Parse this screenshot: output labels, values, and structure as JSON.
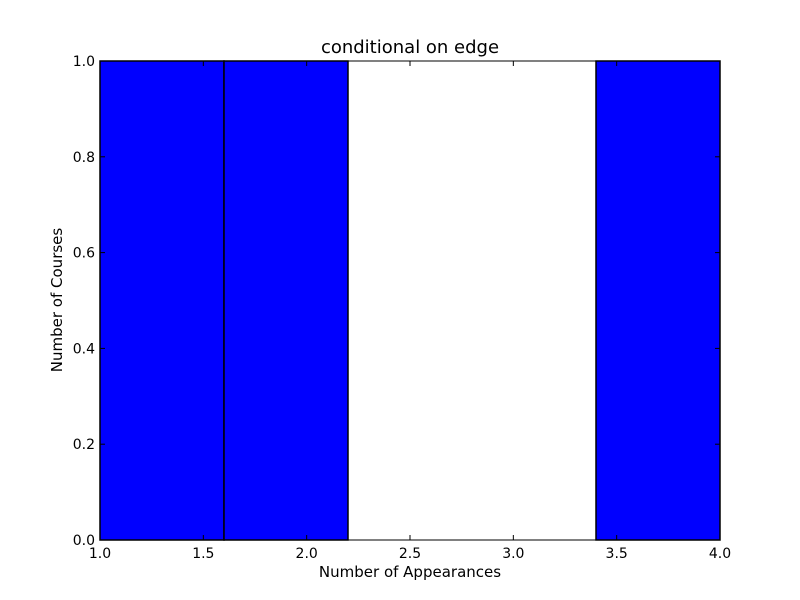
{
  "chart_data": {
    "type": "bar",
    "title": "conditional on edge",
    "xlabel": "Number of Appearances",
    "ylabel": "Number of Courses",
    "xlim": [
      1.0,
      4.0
    ],
    "ylim": [
      0.0,
      1.0
    ],
    "grid": false,
    "bar_color": "#0000ff",
    "edge_color": "#000000",
    "bins": [
      {
        "x0": 1.0,
        "x1": 1.6,
        "value": 1
      },
      {
        "x0": 1.6,
        "x1": 2.2,
        "value": 1
      },
      {
        "x0": 2.2,
        "x1": 2.8,
        "value": 0
      },
      {
        "x0": 2.8,
        "x1": 3.4,
        "value": 0
      },
      {
        "x0": 3.4,
        "x1": 4.0,
        "value": 1
      }
    ],
    "x_ticks": [
      "1.0",
      "1.5",
      "2.0",
      "2.5",
      "3.0",
      "3.5",
      "4.0"
    ],
    "y_ticks": [
      "0.0",
      "0.2",
      "0.4",
      "0.6",
      "0.8",
      "1.0"
    ]
  }
}
